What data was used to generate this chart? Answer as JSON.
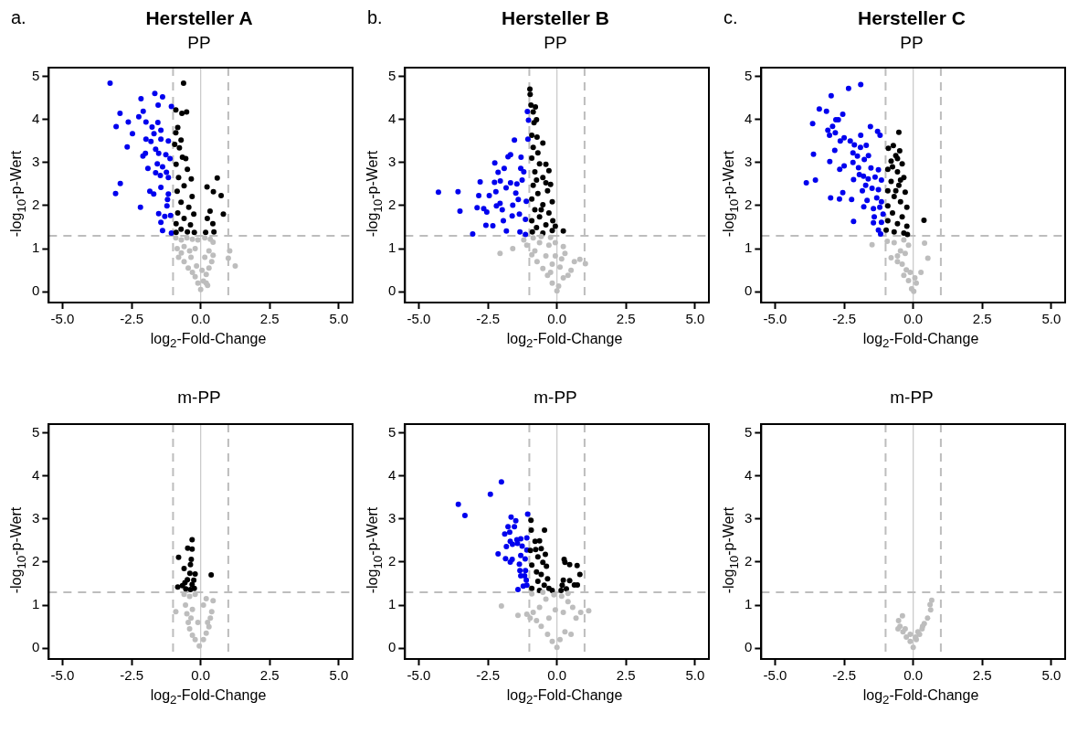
{
  "chart_data": [
    {
      "type": "scatter",
      "title": "Hersteller A",
      "subtitle": "PP",
      "annotations": [
        "a."
      ],
      "xlabel": "log$_{2}$-Fold-Change",
      "ylabel": "-log$_{10}$-p-Wert",
      "xlim": [
        -5.5,
        5.5
      ],
      "ylim": [
        -0.25,
        5.2
      ],
      "xticks": [
        {
          "value": -5,
          "label": "-5.0"
        },
        {
          "value": -2.5,
          "label": "-2.5"
        },
        {
          "value": 0,
          "label": "0.0"
        },
        {
          "value": 2.5,
          "label": "2.5"
        },
        {
          "value": 5,
          "label": "5.0"
        }
      ],
      "yticks": [
        0,
        1,
        2,
        3,
        4,
        5
      ],
      "marker": "circle",
      "ref_lines": [
        {
          "axis": "x",
          "value": 0,
          "color": "#c8c8c8",
          "line_style": "solid"
        },
        {
          "axis": "x",
          "value": -1,
          "color": "#bdbdbd",
          "line_style": "dashed"
        },
        {
          "axis": "x",
          "value": 1,
          "color": "#bdbdbd",
          "line_style": "dashed"
        },
        {
          "axis": "y",
          "value": 1.3,
          "color": "#bdbdbd",
          "line_style": "dashed"
        }
      ],
      "series": [
        {
          "color": "#bdbdbd",
          "x": [
            -0.9,
            -0.7,
            -0.5,
            -0.3,
            -0.1,
            0.15,
            0.35,
            0.45,
            -0.85,
            -0.6,
            -0.4,
            -0.2,
            0.3,
            0.45,
            1.05,
            1.25,
            1.0,
            -0.8,
            -0.6,
            -0.45,
            -0.3,
            -0.2,
            -0.1,
            0,
            0.1,
            0.2,
            0.3,
            0.4,
            -0.7,
            0.25,
            -0.15,
            0.05,
            -0.35,
            0.15,
            0.2
          ],
          "values": [
            1.25,
            1.2,
            1.25,
            1.22,
            1.2,
            1.25,
            1.22,
            1.15,
            1.0,
            1.05,
            0.95,
            1.0,
            0.95,
            0.85,
            0.95,
            0.6,
            0.78,
            0.8,
            0.7,
            0.55,
            0.45,
            0.35,
            0.2,
            0.05,
            0.25,
            0.4,
            0.55,
            0.7,
            0.9,
            0.15,
            0.6,
            0.5,
            0.8,
            0.8,
            0.2
          ]
        },
        {
          "color": "#000000",
          "x": [
            -0.62,
            -0.9,
            -0.51,
            -0.68,
            -0.83,
            -0.9,
            -0.71,
            -0.94,
            -0.77,
            -0.66,
            -0.54,
            -0.89,
            -0.48,
            -0.8,
            -0.34,
            -0.6,
            -0.85,
            -0.31,
            -0.71,
            -0.43,
            -0.83,
            -0.25,
            -0.6,
            -0.89,
            -0.37,
            -0.71,
            -0.48,
            -0.23,
            -0.89,
            0.6,
            0.23,
            0.46,
            0.74,
            0.34,
            0.82,
            0.24,
            0.44,
            0.18,
            0.48
          ],
          "values": [
            4.84,
            4.22,
            4.17,
            4.14,
            3.81,
            3.69,
            3.52,
            3.42,
            3.34,
            3.12,
            3.09,
            2.96,
            2.84,
            2.65,
            2.62,
            2.46,
            2.33,
            2.21,
            2.08,
            1.96,
            1.83,
            1.8,
            1.7,
            1.58,
            1.55,
            1.45,
            1.39,
            1.38,
            1.38,
            2.64,
            2.43,
            2.32,
            2.23,
            1.87,
            1.8,
            1.7,
            1.58,
            1.38,
            1.39
          ]
        },
        {
          "color": "#0000ee",
          "x": [
            -3.28,
            -1.66,
            -1.38,
            -2.16,
            -1.54,
            -1.06,
            -2.92,
            -2.08,
            -2.24,
            -2.62,
            -3.06,
            -1.98,
            -1.55,
            -1.76,
            -1.44,
            -2.47,
            -1.69,
            -1.98,
            -1.44,
            -1.17,
            -2.66,
            -1.8,
            -1.63,
            -2.09,
            -2.0,
            -1.52,
            -1.26,
            -1.11,
            -1.57,
            -1.38,
            -1.91,
            -1.63,
            -1.24,
            -1.46,
            -1.17,
            -2.91,
            -1.44,
            -3.08,
            -1.84,
            -1.7,
            -1.17,
            -1.2,
            -1.22,
            -2.18,
            -1.52,
            -1.3,
            -1.09,
            -1.44,
            -1.38,
            -1.06
          ],
          "values": [
            4.84,
            4.6,
            4.52,
            4.48,
            4.33,
            4.3,
            4.14,
            4.19,
            4.06,
            3.94,
            3.83,
            3.94,
            3.93,
            3.82,
            3.75,
            3.67,
            3.67,
            3.54,
            3.54,
            3.5,
            3.36,
            3.49,
            3.31,
            3.15,
            3.21,
            3.21,
            3.18,
            3.09,
            2.97,
            2.9,
            2.86,
            2.76,
            2.77,
            2.7,
            2.65,
            2.51,
            2.42,
            2.28,
            2.33,
            2.27,
            2.27,
            2.14,
            1.99,
            1.96,
            1.81,
            1.75,
            1.77,
            1.61,
            1.42,
            1.36
          ]
        }
      ]
    },
    {
      "type": "scatter",
      "title": "Hersteller B",
      "subtitle": "PP",
      "annotations": [
        "b."
      ],
      "xlabel": "log$_{2}$-Fold-Change",
      "ylabel": "-log$_{10}$-p-Wert",
      "xlim": [
        -5.5,
        5.5
      ],
      "ylim": [
        -0.25,
        5.2
      ],
      "xticks": [
        {
          "value": -5,
          "label": "-5.0"
        },
        {
          "value": -2.5,
          "label": "-2.5"
        },
        {
          "value": 0,
          "label": "0.0"
        },
        {
          "value": 2.5,
          "label": "2.5"
        },
        {
          "value": 5,
          "label": "5.0"
        }
      ],
      "yticks": [
        0,
        1,
        2,
        3,
        4,
        5
      ],
      "marker": "circle",
      "ref_lines": [
        {
          "axis": "x",
          "value": 0,
          "color": "#c8c8c8",
          "line_style": "solid"
        },
        {
          "axis": "x",
          "value": -1,
          "color": "#bdbdbd",
          "line_style": "dashed"
        },
        {
          "axis": "x",
          "value": 1,
          "color": "#bdbdbd",
          "line_style": "dashed"
        },
        {
          "axis": "y",
          "value": 1.3,
          "color": "#bdbdbd",
          "line_style": "dashed"
        }
      ],
      "series": [
        {
          "color": "#bdbdbd",
          "x": [
            -2.06,
            -1.6,
            -1.09,
            -1.2,
            -0.63,
            -0.29,
            -0.06,
            0.23,
            0.29,
            0.63,
            0.83,
            1.03,
            0.51,
            0.4,
            0.23,
            0.06,
            0,
            -0.17,
            -0.34,
            -0.51,
            -0.72,
            -0.91,
            -0.8,
            -0.4,
            -0.17,
            0.11,
            -0.23,
            -0.06,
            0.17,
            -0.57,
            -0.23,
            -0.86
          ],
          "values": [
            0.89,
            1.0,
            1.08,
            1.2,
            1.14,
            1.08,
            1.14,
            1.05,
            0.89,
            0.7,
            0.75,
            0.65,
            0.5,
            0.38,
            0.32,
            0.13,
            0.02,
            0.2,
            0.38,
            0.54,
            0.7,
            0.86,
            0.95,
            0.83,
            0.64,
            0.57,
            0.45,
            0.83,
            0.76,
            1.28,
            1.26,
            1.25
          ]
        },
        {
          "color": "#000000",
          "x": [
            -0.98,
            -0.97,
            -0.94,
            -0.78,
            -0.86,
            -0.74,
            -0.83,
            -0.91,
            -0.72,
            -0.51,
            -0.86,
            -0.69,
            -0.91,
            -0.4,
            -0.63,
            -0.29,
            -0.8,
            -0.51,
            -0.23,
            -0.86,
            -0.34,
            -0.69,
            -0.91,
            -0.17,
            -0.51,
            -0.8,
            -0.29,
            -0.63,
            -0.91,
            -0.15,
            -0.4,
            -0.74,
            -0.17,
            -0.89,
            -0.51,
            0.23,
            -0.06,
            -0.57,
            -0.74,
            -0.4
          ],
          "values": [
            4.7,
            4.58,
            4.33,
            4.29,
            4.17,
            3.99,
            3.92,
            3.63,
            3.59,
            3.45,
            3.35,
            3.22,
            3.1,
            2.96,
            2.97,
            2.81,
            2.78,
            2.65,
            2.49,
            2.47,
            2.34,
            2.28,
            2.15,
            2.09,
            2.02,
            1.9,
            1.83,
            1.74,
            1.65,
            1.65,
            1.55,
            1.49,
            1.42,
            1.39,
            1.36,
            1.41,
            1.52,
            1.9,
            2.59,
            2.53
          ]
        },
        {
          "color": "#0000ee",
          "x": [
            -4.29,
            -3.58,
            -3.51,
            -3.05,
            -2.89,
            -2.83,
            -2.78,
            -2.65,
            -2.57,
            -2.54,
            -2.45,
            -2.32,
            -2.26,
            -2.25,
            -2.21,
            -2.19,
            -2.13,
            -2.06,
            -2.05,
            -1.98,
            -1.94,
            -1.91,
            -1.84,
            -1.83,
            -1.77,
            -1.68,
            -1.68,
            -1.62,
            -1.6,
            -1.54,
            -1.49,
            -1.45,
            -1.4,
            -1.36,
            -1.34,
            -1.31,
            -1.3,
            -1.26,
            -1.2,
            -1.14,
            -1.11,
            -1.07,
            -1.05,
            -1.03,
            -1.14
          ],
          "values": [
            2.31,
            2.32,
            1.87,
            1.34,
            1.95,
            2.23,
            2.55,
            1.93,
            1.54,
            1.85,
            2.23,
            1.53,
            2.54,
            2.99,
            2.32,
            1.99,
            2.77,
            2.05,
            2.57,
            1.9,
            1.65,
            2.86,
            2.41,
            1.41,
            3.13,
            3.18,
            2.53,
            1.76,
            2.01,
            3.52,
            2.29,
            2.5,
            2.14,
            1.8,
            1.39,
            2.86,
            3.12,
            2.59,
            2.78,
            1.68,
            2.1,
            4.18,
            3.54,
            3.98,
            1.33
          ]
        }
      ]
    },
    {
      "type": "scatter",
      "title": "Hersteller C",
      "subtitle": "PP",
      "annotations": [
        "c."
      ],
      "xlabel": "log$_{2}$-Fold-Change",
      "ylabel": "-log$_{10}$-p-Wert",
      "xlim": [
        -5.5,
        5.5
      ],
      "ylim": [
        -0.25,
        5.2
      ],
      "xticks": [
        {
          "value": -5,
          "label": "-5.0"
        },
        {
          "value": -2.5,
          "label": "-2.5"
        },
        {
          "value": 0,
          "label": "0.0"
        },
        {
          "value": 2.5,
          "label": "2.5"
        },
        {
          "value": 5,
          "label": "5.0"
        }
      ],
      "yticks": [
        0,
        1,
        2,
        3,
        4,
        5
      ],
      "marker": "circle",
      "ref_lines": [
        {
          "axis": "x",
          "value": 0,
          "color": "#c8c8c8",
          "line_style": "solid"
        },
        {
          "axis": "x",
          "value": -1,
          "color": "#bdbdbd",
          "line_style": "dashed"
        },
        {
          "axis": "x",
          "value": 1,
          "color": "#bdbdbd",
          "line_style": "dashed"
        },
        {
          "axis": "y",
          "value": 1.3,
          "color": "#bdbdbd",
          "line_style": "dashed"
        }
      ],
      "series": [
        {
          "color": "#bdbdbd",
          "x": [
            -1.49,
            -0.94,
            -0.69,
            -0.34,
            -0.17,
            -0.8,
            -0.57,
            -0.29,
            -0.4,
            -0.57,
            -0.25,
            -0.34,
            -0.17,
            -0.06,
            0.02,
            0.11,
            0.28,
            0.41,
            0.53,
            -0.11,
            -0.46,
            0.06
          ],
          "values": [
            1.09,
            1.17,
            1.14,
            1.2,
            1.08,
            0.79,
            0.83,
            0.89,
            0.64,
            0.7,
            0.51,
            0.38,
            0.26,
            0.07,
            0.01,
            0.2,
            0.45,
            1.13,
            0.78,
            0.45,
            0.95,
            0.32
          ]
        },
        {
          "color": "#000000",
          "x": [
            -0.52,
            -0.72,
            -0.9,
            -0.49,
            -0.63,
            -0.8,
            -0.4,
            -0.92,
            -0.57,
            -0.34,
            -0.8,
            -0.52,
            -0.92,
            -0.29,
            -0.69,
            -0.46,
            -0.92,
            -0.23,
            -0.75,
            -0.4,
            -0.92,
            -0.57,
            -0.23,
            -0.98,
            -0.69,
            -0.34,
            -0.21,
            0.39,
            -0.63,
            -0.46,
            -0.75,
            -0.57
          ],
          "values": [
            3.7,
            3.39,
            3.33,
            3.27,
            3.16,
            3.03,
            2.97,
            2.84,
            2.78,
            2.65,
            2.56,
            2.47,
            2.34,
            2.31,
            2.21,
            2.09,
            1.99,
            1.96,
            1.83,
            1.74,
            1.65,
            1.58,
            1.52,
            1.43,
            1.39,
            1.36,
            1.33,
            1.66,
            2.34,
            2.59,
            2.9,
            3.09
          ]
        },
        {
          "color": "#0000ee",
          "x": [
            -1.9,
            -2.34,
            -2.97,
            -3.4,
            -3.14,
            -2.55,
            -3.64,
            -2.71,
            -2.8,
            -2.92,
            -3.09,
            -2.82,
            -3.03,
            -1.55,
            -1.29,
            -1.2,
            -1.9,
            -2.5,
            -2.64,
            -2.28,
            -2.13,
            -1.91,
            -1.7,
            -3.61,
            -2.84,
            -2.18,
            -2.02,
            -1.62,
            -3.02,
            -2.18,
            -1.77,
            -2.5,
            -2.66,
            -1.98,
            -1.53,
            -1.95,
            -1.8,
            -1.26,
            -3.54,
            -3.87,
            -2.16,
            -1.63,
            -1.38,
            -1.15,
            -1.72,
            -1.49,
            -1.84,
            -1.26,
            -2.55,
            -2.99,
            -2.67,
            -2.23,
            -1.67,
            -1.32,
            -1.15,
            -1.79,
            -1.44,
            -1.21,
            -1.41,
            -1.09,
            -2.16,
            -1.44,
            -1.15,
            -1.26,
            -1.18
          ],
          "values": [
            4.81,
            4.72,
            4.55,
            4.24,
            4.19,
            4.12,
            3.9,
            3.99,
            3.99,
            3.84,
            3.75,
            3.69,
            3.63,
            3.83,
            3.72,
            3.63,
            3.63,
            3.57,
            3.5,
            3.5,
            3.41,
            3.35,
            3.4,
            3.19,
            3.28,
            3.22,
            3.15,
            3.16,
            3.02,
            3.0,
            3.07,
            2.92,
            2.84,
            2.88,
            2.87,
            2.72,
            2.68,
            2.83,
            2.59,
            2.53,
            2.6,
            2.62,
            2.66,
            2.59,
            2.47,
            2.4,
            2.34,
            2.37,
            2.3,
            2.18,
            2.15,
            2.14,
            2.12,
            2.18,
            2.09,
            1.97,
            1.93,
            1.96,
            1.74,
            1.8,
            1.63,
            1.6,
            1.61,
            1.43,
            1.34
          ]
        }
      ]
    },
    {
      "type": "scatter",
      "title": "m-PP",
      "xlabel": "log$_{2}$-Fold-Change",
      "ylabel": "-log$_{10}$-p-Wert",
      "xlim": [
        -5.5,
        5.5
      ],
      "ylim": [
        -0.25,
        5.2
      ],
      "xticks": [
        {
          "value": -5,
          "label": "-5.0"
        },
        {
          "value": -2.5,
          "label": "-2.5"
        },
        {
          "value": 0,
          "label": "0.0"
        },
        {
          "value": 2.5,
          "label": "2.5"
        },
        {
          "value": 5,
          "label": "5.0"
        }
      ],
      "yticks": [
        0,
        1,
        2,
        3,
        4,
        5
      ],
      "marker": "circle",
      "ref_lines": [
        {
          "axis": "x",
          "value": 0,
          "color": "#c8c8c8",
          "line_style": "solid"
        },
        {
          "axis": "x",
          "value": -1,
          "color": "#bdbdbd",
          "line_style": "dashed"
        },
        {
          "axis": "x",
          "value": 1,
          "color": "#bdbdbd",
          "line_style": "dashed"
        },
        {
          "axis": "y",
          "value": 1.3,
          "color": "#bdbdbd",
          "line_style": "dashed"
        }
      ],
      "series": [
        {
          "color": "#bdbdbd",
          "x": [
            -0.9,
            -0.6,
            -0.4,
            -0.2,
            0.2,
            0.45,
            0.4,
            0.35,
            -0.55,
            -0.5,
            -0.45,
            -0.4,
            -0.3,
            -0.2,
            -0.05,
            0.1,
            0.2,
            0.3,
            -0.3,
            0.25,
            -0.1,
            -0.35,
            0.1
          ],
          "values": [
            0.85,
            1.25,
            1.2,
            1.25,
            1.15,
            1.1,
            0.85,
            0.7,
            1.0,
            0.8,
            0.6,
            0.45,
            0.3,
            0.2,
            0.05,
            0.2,
            0.35,
            0.5,
            0.9,
            0.6,
            0.6,
            0.7,
            1.0
          ]
        },
        {
          "color": "#000000",
          "x": [
            -0.31,
            -0.47,
            -0.31,
            -0.8,
            -0.34,
            -0.37,
            -0.6,
            -0.39,
            -0.2,
            0.38,
            -0.48,
            -0.57,
            -0.31,
            -0.83,
            -0.43,
            -0.23,
            -0.54,
            -0.37,
            -0.66,
            -0.25
          ],
          "values": [
            2.52,
            2.32,
            2.3,
            2.11,
            2.06,
            1.94,
            1.85,
            1.74,
            1.72,
            1.7,
            1.59,
            1.52,
            1.48,
            1.42,
            null,
            1.39,
            1.38,
            1.36,
            1.45,
            1.58
          ]
        }
      ]
    },
    {
      "type": "scatter",
      "title": "m-PP",
      "xlabel": "log$_{2}$-Fold-Change",
      "ylabel": "-log$_{10}$-p-Wert",
      "xlim": [
        -5.5,
        5.5
      ],
      "ylim": [
        -0.25,
        5.2
      ],
      "xticks": [
        {
          "value": -5,
          "label": "-5.0"
        },
        {
          "value": -2.5,
          "label": "-2.5"
        },
        {
          "value": 0,
          "label": "0.0"
        },
        {
          "value": 2.5,
          "label": "2.5"
        },
        {
          "value": 5,
          "label": "5.0"
        }
      ],
      "yticks": [
        0,
        1,
        2,
        3,
        4,
        5
      ],
      "marker": "circle",
      "ref_lines": [
        {
          "axis": "x",
          "value": 0,
          "color": "#c8c8c8",
          "line_style": "solid"
        },
        {
          "axis": "x",
          "value": -1,
          "color": "#bdbdbd",
          "line_style": "dashed"
        },
        {
          "axis": "x",
          "value": 1,
          "color": "#bdbdbd",
          "line_style": "dashed"
        },
        {
          "axis": "y",
          "value": 1.3,
          "color": "#bdbdbd",
          "line_style": "dashed"
        }
      ],
      "series": [
        {
          "color": "#bdbdbd",
          "x": [
            -2.01,
            -1.41,
            -1.09,
            -0.86,
            -0.63,
            -0.4,
            -0.11,
            0.17,
            0.4,
            0.57,
            1.15,
            0.86,
            0.69,
            0.51,
            0.29,
            0.11,
            0,
            -0.17,
            -0.34,
            -0.57,
            -0.74,
            -0.97,
            -0.29,
            -0.06,
            0.23,
            -0.51,
            -0.91,
            0.4
          ],
          "values": [
            0.98,
            0.76,
            0.79,
            0.83,
            0.95,
            1.14,
            1.24,
            1.21,
            1.08,
            0.95,
            0.87,
            0.83,
            0.7,
            0.32,
            0.38,
            0.2,
            0.02,
            0.16,
            0.32,
            0.51,
            0.64,
            0.7,
            0.7,
            0.89,
            0.83,
            1.3,
            1.26,
            1.27
          ]
        },
        {
          "color": "#000000",
          "x": [
            -0.94,
            -0.45,
            -0.93,
            -0.79,
            -0.63,
            -0.96,
            -0.77,
            -0.57,
            -0.42,
            -0.69,
            -0.51,
            -0.38,
            -0.91,
            -0.74,
            -0.57,
            -0.34,
            -0.69,
            -0.46,
            -0.29,
            -0.91,
            -0.17,
            -0.63,
            0.26,
            0.29,
            0.46,
            0.73,
            0.83,
            0.23,
            0.46,
            0.63,
            0.74,
            0.19,
            0.34,
            0.15
          ],
          "values": [
            2.97,
            2.74,
            2.74,
            2.48,
            2.49,
            2.27,
            2.29,
            2.31,
            2.18,
            2.12,
            1.99,
            1.9,
            1.93,
            1.77,
            1.71,
            1.61,
            1.55,
            1.46,
            1.39,
            1.39,
            1.34,
            1.34,
            2.06,
            1.99,
            1.94,
            1.92,
            1.71,
            1.58,
            1.57,
            1.47,
            1.47,
            1.46,
            1.38,
            1.34
          ]
        },
        {
          "color": "#0000ee",
          "x": [
            -2.01,
            -2.41,
            -3.57,
            -3.33,
            -1.06,
            -1.66,
            -1.49,
            -1.77,
            -1.54,
            -1.71,
            -1.89,
            -1.09,
            -1.69,
            -1.45,
            -1.31,
            -1.61,
            -1.26,
            -1.83,
            -1.43,
            -1.09,
            -2.13,
            -1.31,
            -1.86,
            -1.62,
            -1.15,
            -1.69,
            -1.36,
            -1.34,
            -1.14,
            -1.31,
            -1.17,
            -1.11,
            -1.22,
            -1.41,
            -1.09
          ],
          "values": [
            3.86,
            3.57,
            3.34,
            3.08,
            3.11,
            3.04,
            2.96,
            2.82,
            2.82,
            2.69,
            2.65,
            2.56,
            2.48,
            2.52,
            2.54,
            2.41,
            2.37,
            2.36,
            2.43,
            2.28,
            2.19,
            2.15,
            2.08,
            2.06,
            2.07,
            2.0,
            1.95,
            1.8,
            1.8,
            1.68,
            1.68,
            1.58,
            1.44,
            1.36,
            1.46
          ]
        }
      ]
    },
    {
      "type": "scatter",
      "title": "m-PP",
      "xlabel": "log$_{2}$-Fold-Change",
      "ylabel": "-log$_{10}$-p-Wert",
      "xlim": [
        -5.5,
        5.5
      ],
      "ylim": [
        -0.25,
        5.2
      ],
      "xticks": [
        {
          "value": -5,
          "label": "-5.0"
        },
        {
          "value": -2.5,
          "label": "-2.5"
        },
        {
          "value": 0,
          "label": "0.0"
        },
        {
          "value": 2.5,
          "label": "2.5"
        },
        {
          "value": 5,
          "label": "5.0"
        }
      ],
      "yticks": [
        0,
        1,
        2,
        3,
        4,
        5
      ],
      "marker": "circle",
      "ref_lines": [
        {
          "axis": "x",
          "value": 0,
          "color": "#c8c8c8",
          "line_style": "solid"
        },
        {
          "axis": "x",
          "value": -1,
          "color": "#bdbdbd",
          "line_style": "dashed"
        },
        {
          "axis": "x",
          "value": 1,
          "color": "#bdbdbd",
          "line_style": "dashed"
        },
        {
          "axis": "y",
          "value": 1.3,
          "color": "#bdbdbd",
          "line_style": "dashed"
        }
      ],
      "series": [
        {
          "color": "#bdbdbd",
          "x": [
            0.67,
            0.61,
            0.63,
            0.52,
            0.4,
            0.32,
            0.23,
            0.11,
            0,
            -0.11,
            -0.25,
            -0.37,
            -0.48,
            -0.53,
            -0.46,
            -0.39,
            -0.55,
            -0.29,
            0.17,
            0.34,
            -0.11,
            0.09
          ],
          "values": [
            1.11,
            1.01,
            0.89,
            0.7,
            0.57,
            0.45,
            0.32,
            0.2,
            0.02,
            0.16,
            0.26,
            0.38,
            0.51,
            0.64,
            null,
            0.75,
            0.45,
            0.45,
            0.38,
            0.51,
            0.32,
            0.26
          ]
        }
      ]
    }
  ]
}
